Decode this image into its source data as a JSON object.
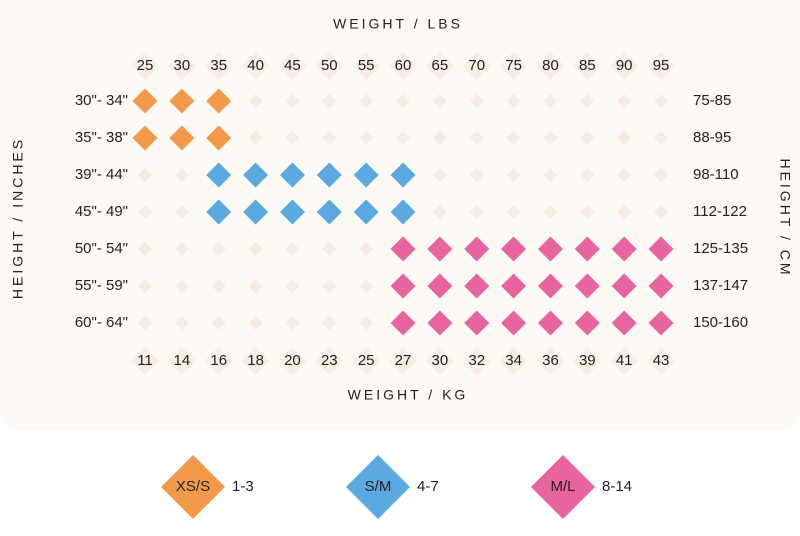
{
  "top_axis": {
    "title": "WEIGHT / LBS",
    "labels": [
      "25",
      "30",
      "35",
      "40",
      "45",
      "50",
      "55",
      "60",
      "65",
      "70",
      "75",
      "80",
      "85",
      "90",
      "95"
    ]
  },
  "bottom_axis": {
    "title": "WEIGHT / KG",
    "labels": [
      "11",
      "14",
      "16",
      "18",
      "20",
      "23",
      "25",
      "27",
      "30",
      "32",
      "34",
      "36",
      "39",
      "41",
      "43"
    ]
  },
  "left_axis": {
    "title": "HEIGHT / INCHES",
    "labels": [
      "30\"- 34\"",
      "35\"- 38\"",
      "39\"- 44\"",
      "45\"- 49\"",
      "50\"- 54\"",
      "55\"- 59\"",
      "60\"- 64\""
    ]
  },
  "right_axis": {
    "title": "HEIGHT / CM",
    "labels": [
      "75-85",
      "88-95",
      "98-110",
      "112-122",
      "125-135",
      "137-147",
      "150-160"
    ]
  },
  "grid": [
    [
      "XS/S",
      "XS/S",
      "XS/S",
      null,
      null,
      null,
      null,
      null,
      null,
      null,
      null,
      null,
      null,
      null,
      null
    ],
    [
      "XS/S",
      "XS/S",
      "XS/S",
      null,
      null,
      null,
      null,
      null,
      null,
      null,
      null,
      null,
      null,
      null,
      null
    ],
    [
      null,
      null,
      "S/M",
      "S/M",
      "S/M",
      "S/M",
      "S/M",
      "S/M",
      null,
      null,
      null,
      null,
      null,
      null,
      null
    ],
    [
      null,
      null,
      "S/M",
      "S/M",
      "S/M",
      "S/M",
      "S/M",
      "S/M",
      null,
      null,
      null,
      null,
      null,
      null,
      null
    ],
    [
      null,
      null,
      null,
      null,
      null,
      null,
      null,
      "M/L",
      "M/L",
      "M/L",
      "M/L",
      "M/L",
      "M/L",
      "M/L",
      "M/L"
    ],
    [
      null,
      null,
      null,
      null,
      null,
      null,
      null,
      "M/L",
      "M/L",
      "M/L",
      "M/L",
      "M/L",
      "M/L",
      "M/L",
      "M/L"
    ],
    [
      null,
      null,
      null,
      null,
      null,
      null,
      null,
      "M/L",
      "M/L",
      "M/L",
      "M/L",
      "M/L",
      "M/L",
      "M/L",
      "M/L"
    ]
  ],
  "legend": [
    {
      "size": "XS/S",
      "range": "1-3",
      "color": "#f39a4a"
    },
    {
      "size": "S/M",
      "range": "4-7",
      "color": "#5ba9e1"
    },
    {
      "size": "M/L",
      "range": "8-14",
      "color": "#e8649e"
    }
  ]
}
